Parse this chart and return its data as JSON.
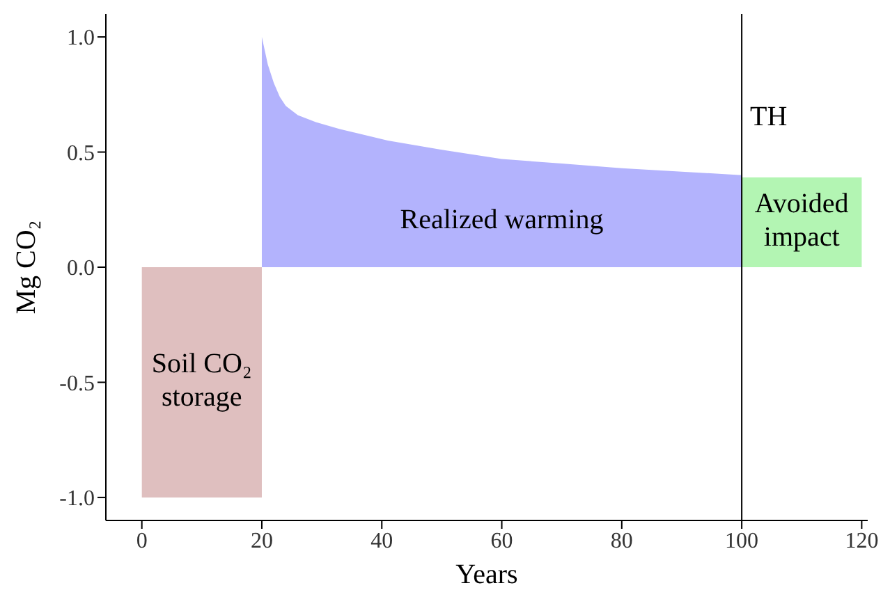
{
  "chart_data": {
    "type": "area",
    "xlabel": "Years",
    "ylabel": "Mg CO₂",
    "xlim": [
      -6,
      121
    ],
    "xticks": [
      0,
      20,
      40,
      60,
      80,
      100,
      120
    ],
    "ylim": [
      -1.1,
      1.1
    ],
    "yticks": [
      {
        "value": -1,
        "label": "-1.0"
      },
      {
        "value": -0.5,
        "label": "-0.5"
      },
      {
        "value": 0,
        "label": "0.0"
      },
      {
        "value": 0.5,
        "label": "0.5"
      },
      {
        "value": 1,
        "label": "1.0"
      }
    ],
    "series": [
      {
        "color": "#dfbfbf",
        "x": [
          0,
          20
        ],
        "values": [
          -1,
          -1
        ]
      },
      {
        "color": "#b3b3fd",
        "x": [
          20,
          21,
          22,
          23,
          24,
          26,
          29,
          33,
          41,
          50,
          60,
          70,
          80,
          90,
          100
        ],
        "values": [
          1.0,
          0.88,
          0.8,
          0.74,
          0.7,
          0.66,
          0.63,
          0.6,
          0.55,
          0.51,
          0.47,
          0.45,
          0.43,
          0.415,
          0.4
        ]
      },
      {
        "color": "#b3f5b3",
        "x": [
          100,
          120
        ],
        "values": [
          0.39,
          0.39
        ]
      }
    ],
    "ref_lines": [
      {
        "axis": "x",
        "value": 100,
        "label": "TH",
        "color": "#000000"
      }
    ],
    "annotations": [
      "Soil CO₂ storage",
      "Realized warming",
      "Avoided impact"
    ]
  }
}
